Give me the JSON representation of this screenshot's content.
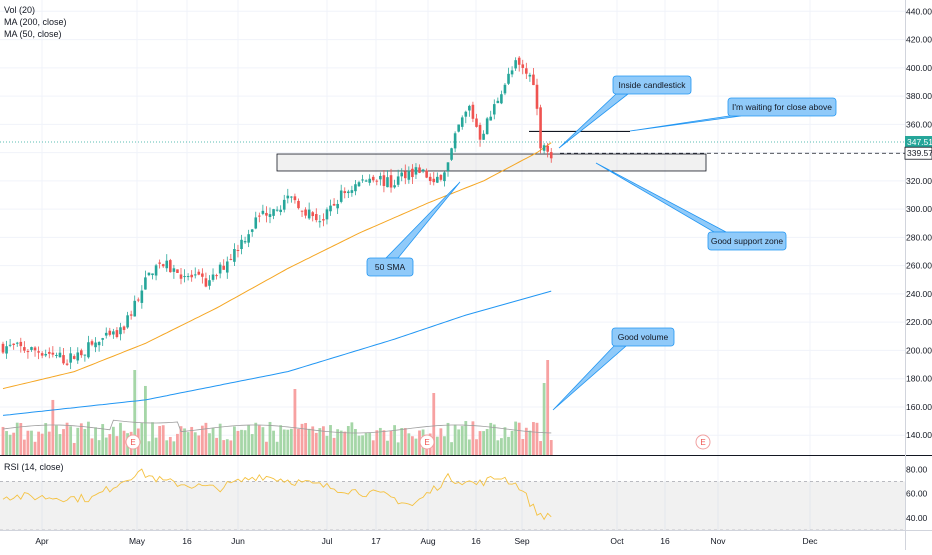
{
  "legend": {
    "vol": "Vol (20)",
    "ma200": "MA (200, close)",
    "ma50": "MA (50, close)",
    "rsi": "RSI (14, close)"
  },
  "colors": {
    "up": "#26a69a",
    "down": "#ef5350",
    "vol_up": "#a5d6a7",
    "vol_down": "#f7a1a1",
    "ma50": "#f5a623",
    "ma200": "#2196f3",
    "rsi": "#f5c242",
    "callout_fill": "#90caf9",
    "callout_stroke": "#2196f3"
  },
  "chart_data": {
    "type": "candlestick",
    "price_axis": {
      "ticks": [
        440,
        420,
        400,
        380,
        360,
        340,
        320,
        300,
        280,
        260,
        240,
        220,
        200,
        180,
        160,
        140
      ],
      "labels": [
        "440.00",
        "420.00",
        "400.00",
        "380.00",
        "360.00",
        "340.00",
        "320.00",
        "300.00",
        "280.00",
        "260.00",
        "240.00",
        "220.00",
        "200.00",
        "180.00",
        "160.00",
        "140.00"
      ],
      "ylim": [
        126,
        448
      ]
    },
    "rsi_axis": {
      "ticks": [
        80,
        60,
        40
      ],
      "labels": [
        "80.00",
        "60.00",
        "40.00"
      ],
      "ylim": [
        30,
        86
      ],
      "band": [
        30,
        70
      ]
    },
    "x_axis": {
      "labels": [
        "Apr",
        "May",
        "16",
        "Jun",
        "Jul",
        "17",
        "Aug",
        "16",
        "Sep",
        "Oct",
        "16",
        "Nov",
        "Dec"
      ]
    },
    "price_labels": [
      {
        "text": "347.51",
        "value": 347.51,
        "color": "#26a69a"
      },
      {
        "text": "339.57",
        "value": 339.57,
        "color": "#131722"
      }
    ],
    "support_zone": [
      327,
      339
    ],
    "resistance_level": 355,
    "earnings_marker": "E",
    "waypoints": [
      [
        0,
        203
      ],
      [
        12,
        199
      ],
      [
        18,
        193
      ],
      [
        26,
        205
      ],
      [
        33,
        212
      ],
      [
        38,
        238
      ],
      [
        43,
        263
      ],
      [
        47,
        258
      ],
      [
        52,
        252
      ],
      [
        58,
        247
      ],
      [
        66,
        274
      ],
      [
        72,
        295
      ],
      [
        76,
        302
      ],
      [
        82,
        307
      ],
      [
        86,
        297
      ],
      [
        90,
        292
      ],
      [
        95,
        310
      ],
      [
        99,
        317
      ],
      [
        104,
        324
      ],
      [
        109,
        317
      ],
      [
        113,
        326
      ],
      [
        117,
        328
      ],
      [
        121,
        318
      ],
      [
        125,
        332
      ],
      [
        128,
        358
      ],
      [
        131,
        372
      ],
      [
        134,
        352
      ],
      [
        137,
        366
      ],
      [
        140,
        385
      ],
      [
        144,
        402
      ],
      [
        146,
        398
      ],
      [
        149,
        392
      ],
      [
        151,
        347
      ],
      [
        153,
        345
      ],
      [
        154,
        340
      ]
    ],
    "ma50_waypoints": [
      [
        0,
        173
      ],
      [
        20,
        185
      ],
      [
        40,
        205
      ],
      [
        60,
        230
      ],
      [
        80,
        258
      ],
      [
        100,
        283
      ],
      [
        120,
        305
      ],
      [
        135,
        320
      ],
      [
        150,
        340
      ],
      [
        154,
        347
      ]
    ],
    "ma200_waypoints": [
      [
        0,
        154
      ],
      [
        40,
        165
      ],
      [
        80,
        185
      ],
      [
        110,
        208
      ],
      [
        130,
        225
      ],
      [
        154,
        242
      ]
    ],
    "rsi_waypoints": [
      [
        0,
        58
      ],
      [
        25,
        56
      ],
      [
        38,
        78
      ],
      [
        45,
        70
      ],
      [
        60,
        64
      ],
      [
        72,
        75
      ],
      [
        90,
        66
      ],
      [
        108,
        58
      ],
      [
        115,
        50
      ],
      [
        125,
        73
      ],
      [
        133,
        68
      ],
      [
        140,
        74
      ],
      [
        145,
        66
      ],
      [
        150,
        44
      ],
      [
        154,
        40
      ]
    ],
    "volume_scale": 100,
    "volume_base": 50
  },
  "annotations": [
    {
      "id": "inside",
      "text": "Inside candlestick"
    },
    {
      "id": "waiting",
      "text": "I'm waiting for close above"
    },
    {
      "id": "support",
      "text": "Good support zone"
    },
    {
      "id": "sma",
      "text": "50 SMA"
    },
    {
      "id": "volume",
      "text": "Good volume"
    }
  ]
}
